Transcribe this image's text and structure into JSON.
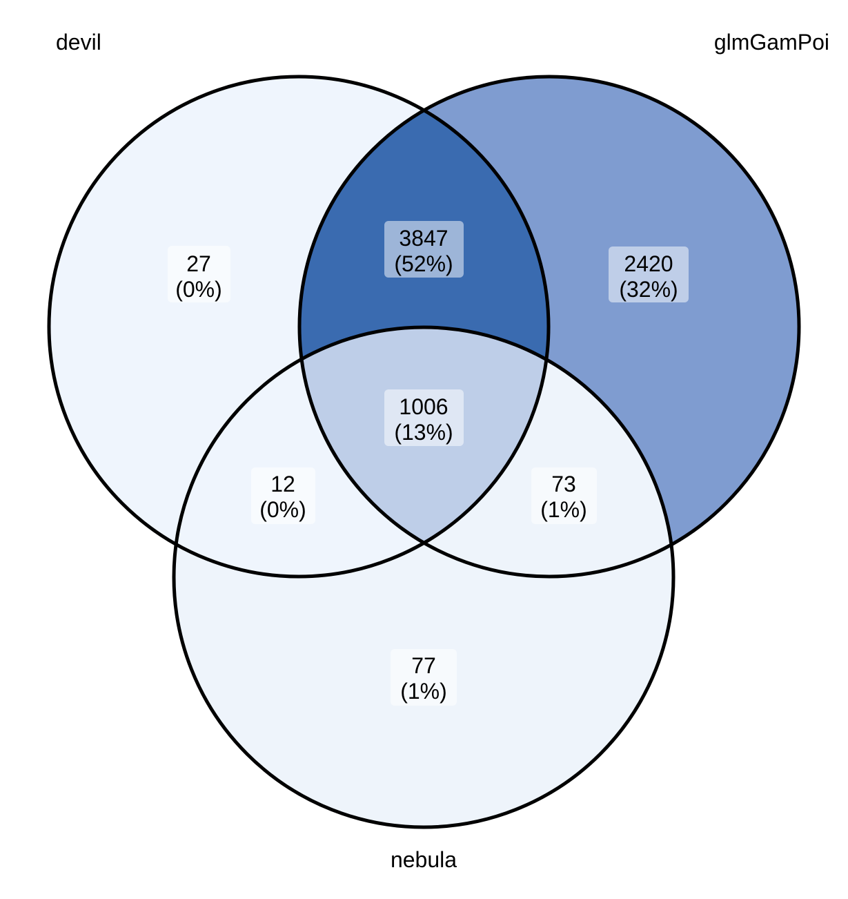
{
  "sets": {
    "a": "devil",
    "b": "glmGamPoi",
    "c": "nebula"
  },
  "regions": {
    "a_only": {
      "count": "27",
      "pct": "(0%)",
      "value": 27
    },
    "b_only": {
      "count": "2420",
      "pct": "(32%)",
      "value": 2420
    },
    "c_only": {
      "count": "77",
      "pct": "(1%)",
      "value": 77
    },
    "ab": {
      "count": "3847",
      "pct": "(52%)",
      "value": 3847
    },
    "ac": {
      "count": "12",
      "pct": "(0%)",
      "value": 12
    },
    "bc": {
      "count": "73",
      "pct": "(1%)",
      "value": 73
    },
    "abc": {
      "count": "1006",
      "pct": "(13%)",
      "value": 1006
    }
  },
  "colors": {
    "a_only": "#EFF5FD",
    "b_only": "#7F9CD0",
    "c_only": "#EEF4FB",
    "ab": "#3A6BB0",
    "ac": "#EFF5FD",
    "bc": "#EEF4FB",
    "abc": "#BECEE8",
    "outline": "#000000"
  }
}
